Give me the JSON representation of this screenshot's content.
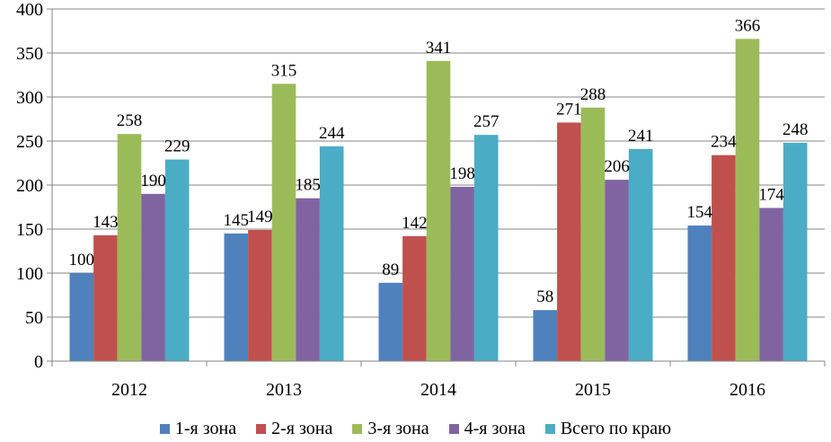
{
  "chart_data": {
    "type": "bar",
    "categories": [
      "2012",
      "2013",
      "2014",
      "2015",
      "2016"
    ],
    "series": [
      {
        "name": "1-я зона",
        "color": "#4F81BD",
        "values": [
          100,
          145,
          89,
          58,
          154
        ]
      },
      {
        "name": "2-я зона",
        "color": "#C0504D",
        "values": [
          143,
          149,
          142,
          271,
          234
        ]
      },
      {
        "name": "3-я зона",
        "color": "#9BBB59",
        "values": [
          258,
          315,
          341,
          288,
          366
        ]
      },
      {
        "name": "4-я зона",
        "color": "#8064A2",
        "values": [
          190,
          185,
          198,
          206,
          174
        ]
      },
      {
        "name": "Всего по краю",
        "color": "#4BACC6",
        "values": [
          229,
          244,
          257,
          241,
          248
        ]
      }
    ],
    "ylim": [
      0,
      400
    ],
    "yticks": [
      "0",
      "50",
      "100",
      "150",
      "200",
      "250",
      "300",
      "350",
      "400"
    ],
    "grid": true,
    "legend_position": "bottom"
  }
}
